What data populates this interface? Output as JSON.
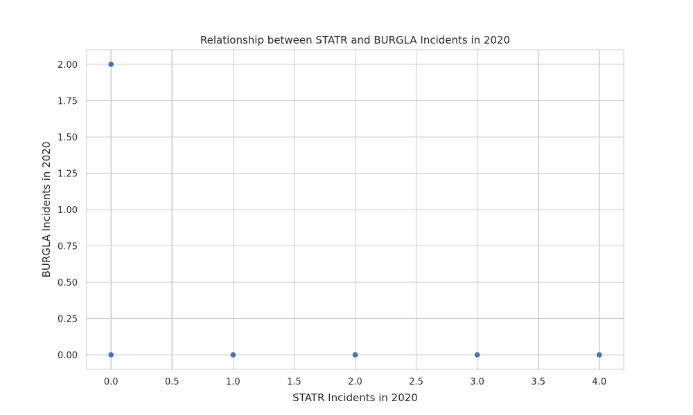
{
  "chart_data": {
    "type": "scatter",
    "title": "Relationship between STATR and BURGLA Incidents in 2020",
    "xlabel": "STATR Incidents in 2020",
    "ylabel": "BURGLA Incidents in 2020",
    "xlim": [
      -0.2,
      4.2
    ],
    "ylim": [
      -0.1,
      2.1
    ],
    "x_ticks": [
      0.0,
      0.5,
      1.0,
      1.5,
      2.0,
      2.5,
      3.0,
      3.5,
      4.0
    ],
    "x_tick_labels": [
      "0.0",
      "0.5",
      "1.0",
      "1.5",
      "2.0",
      "2.5",
      "3.0",
      "3.5",
      "4.0"
    ],
    "y_ticks": [
      0.0,
      0.25,
      0.5,
      0.75,
      1.0,
      1.25,
      1.5,
      1.75,
      2.0
    ],
    "y_tick_labels": [
      "0.00",
      "0.25",
      "0.50",
      "0.75",
      "1.00",
      "1.25",
      "1.50",
      "1.75",
      "2.00"
    ],
    "grid": true,
    "point_color": "#4c72b0",
    "points": [
      {
        "x": 0,
        "y": 2
      },
      {
        "x": 0,
        "y": 0
      },
      {
        "x": 1,
        "y": 0
      },
      {
        "x": 2,
        "y": 0
      },
      {
        "x": 3,
        "y": 0
      },
      {
        "x": 4,
        "y": 0
      }
    ]
  }
}
